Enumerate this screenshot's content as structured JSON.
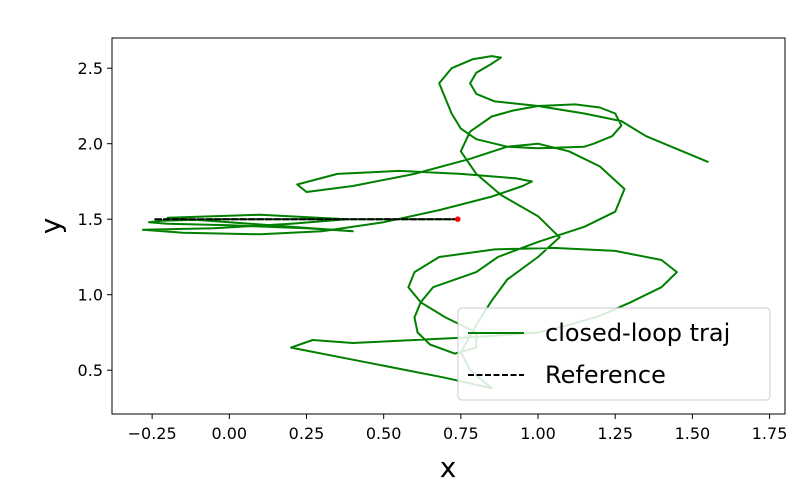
{
  "chart_data": {
    "type": "line",
    "title": "",
    "xlabel": "x",
    "ylabel": "y",
    "xlim": [
      -0.38,
      1.8
    ],
    "ylim": [
      0.21,
      2.7
    ],
    "xticks": [
      -0.25,
      0.0,
      0.25,
      0.5,
      0.75,
      1.0,
      1.25,
      1.5,
      1.75
    ],
    "xtick_labels": [
      "−0.25",
      "0.00",
      "0.25",
      "0.50",
      "0.75",
      "1.00",
      "1.25",
      "1.50",
      "1.75"
    ],
    "yticks": [
      0.5,
      1.0,
      1.5,
      2.0,
      2.5
    ],
    "ytick_labels": [
      "0.5",
      "1.0",
      "1.5",
      "2.0",
      "2.5"
    ],
    "grid": false,
    "legend_position": "bottom-right",
    "series": [
      {
        "name": "closed-loop traj",
        "color": "#008000",
        "style": "solid",
        "x": [
          0.74,
          0.55,
          0.35,
          0.15,
          -0.05,
          -0.22,
          -0.26,
          -0.2,
          0.0,
          0.25,
          0.4,
          0.2,
          0.0,
          -0.2,
          0.1,
          0.38,
          0.2,
          -0.05,
          -0.28,
          -0.15,
          0.1,
          0.3,
          0.5,
          0.68,
          0.85,
          0.95,
          0.98,
          0.93,
          0.75,
          0.55,
          0.35,
          0.22,
          0.25,
          0.4,
          0.6,
          0.78,
          0.9,
          1.0,
          1.1,
          1.2,
          1.28,
          1.25,
          1.15,
          1.0,
          0.87,
          0.8,
          0.66,
          0.62,
          0.6,
          0.61,
          0.65,
          0.73,
          0.8,
          0.8,
          0.7,
          0.62,
          0.58,
          0.6,
          0.68,
          0.86,
          1.05,
          1.25,
          1.4,
          1.45,
          1.4,
          1.3,
          1.2,
          1.1,
          1.0,
          0.8,
          0.6,
          0.4,
          0.27,
          0.2,
          0.45,
          0.7,
          0.85,
          0.78,
          0.75,
          0.8,
          0.85,
          0.9,
          1.0,
          1.07,
          1.0,
          0.88,
          0.8,
          0.75,
          0.78,
          0.85,
          0.92,
          1.0,
          1.12,
          1.2,
          1.25,
          1.27,
          1.24,
          1.18,
          1.15,
          1.0,
          0.9,
          0.8,
          0.75,
          0.72,
          0.7,
          0.68,
          0.72,
          0.79,
          0.85,
          0.88,
          0.85,
          0.8,
          0.78,
          0.8,
          0.86,
          1.0,
          1.15,
          1.27,
          1.35,
          1.55
        ],
        "y": [
          1.5,
          1.5,
          1.5,
          1.5,
          1.5,
          1.49,
          1.48,
          1.47,
          1.46,
          1.44,
          1.42,
          1.45,
          1.48,
          1.51,
          1.53,
          1.5,
          1.47,
          1.44,
          1.43,
          1.41,
          1.4,
          1.42,
          1.48,
          1.56,
          1.65,
          1.72,
          1.75,
          1.77,
          1.8,
          1.82,
          1.8,
          1.73,
          1.68,
          1.72,
          1.8,
          1.9,
          1.98,
          2.0,
          1.95,
          1.85,
          1.7,
          1.55,
          1.45,
          1.35,
          1.25,
          1.15,
          1.05,
          0.95,
          0.85,
          0.75,
          0.67,
          0.61,
          0.65,
          0.75,
          0.85,
          0.95,
          1.05,
          1.15,
          1.25,
          1.3,
          1.31,
          1.29,
          1.23,
          1.15,
          1.05,
          0.95,
          0.86,
          0.8,
          0.75,
          0.72,
          0.7,
          0.68,
          0.7,
          0.65,
          0.55,
          0.45,
          0.38,
          0.5,
          0.62,
          0.8,
          0.96,
          1.1,
          1.25,
          1.38,
          1.52,
          1.66,
          1.8,
          1.95,
          2.08,
          2.18,
          2.22,
          2.25,
          2.26,
          2.24,
          2.2,
          2.12,
          2.05,
          2.0,
          1.98,
          1.97,
          1.98,
          2.03,
          2.1,
          2.2,
          2.3,
          2.4,
          2.5,
          2.56,
          2.58,
          2.57,
          2.53,
          2.47,
          2.4,
          2.33,
          2.28,
          2.25,
          2.2,
          2.15,
          2.05,
          1.88
        ]
      },
      {
        "name": "Reference",
        "color": "#000000",
        "style": "dashed",
        "x": [
          -0.24,
          0.74
        ],
        "y": [
          1.5,
          1.5
        ]
      }
    ],
    "markers": [
      {
        "x": 0.74,
        "y": 1.5,
        "color": "#ff0000"
      }
    ]
  }
}
